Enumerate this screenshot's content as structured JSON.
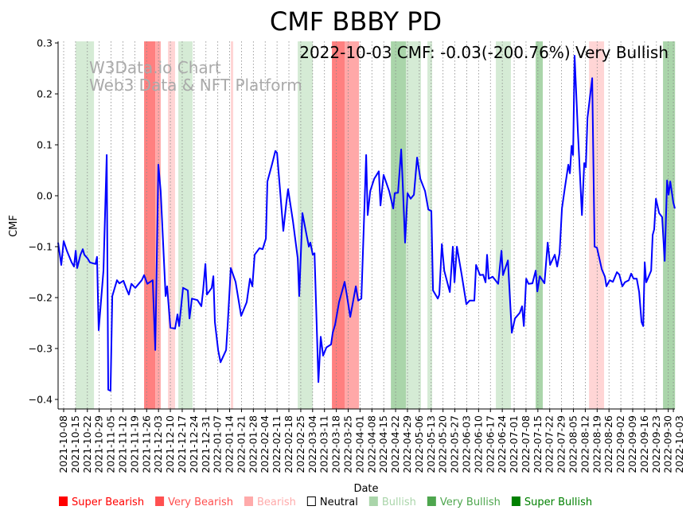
{
  "chart_data": {
    "type": "line",
    "title": "CMF BBBY PD",
    "annotation": "2022-10-03 CMF: -0.03(-200.76%) Very Bullish",
    "watermark": [
      "W3Data.io Chart",
      "Web3 Data & NFT Platform"
    ],
    "xlabel": "Date",
    "ylabel": "CMF",
    "x_unit": "days since 2021-10-08",
    "xlim": [
      -3.3,
      361
    ],
    "ylim": [
      -0.42,
      0.3
    ],
    "yticks": [
      -0.4,
      -0.3,
      -0.2,
      -0.1,
      0.0,
      0.1,
      0.2,
      0.3
    ],
    "ytick_labels": [
      "−0.4",
      "−0.3",
      "−0.2",
      "−0.1",
      "0.0",
      "0.1",
      "0.2",
      "0.3"
    ],
    "xtick_days": [
      0,
      7,
      14,
      21,
      28,
      35,
      42,
      49,
      56,
      63,
      70,
      77,
      84,
      91,
      98,
      105,
      112,
      119,
      126,
      133,
      140,
      147,
      154,
      161,
      168,
      175,
      182,
      189,
      196,
      203,
      210,
      217,
      224,
      231,
      238,
      245,
      252,
      259,
      266,
      273,
      280,
      287,
      294,
      301,
      308,
      315,
      322,
      329,
      336,
      343,
      350,
      357,
      360
    ],
    "xtick_labels": [
      "2021-10-08",
      "2021-10-15",
      "2021-10-22",
      "2021-10-29",
      "2021-11-05",
      "2021-11-12",
      "2021-11-19",
      "2021-11-26",
      "2021-12-03",
      "2021-12-10",
      "2021-12-17",
      "2021-12-24",
      "2021-12-31",
      "2022-01-07",
      "2022-01-14",
      "2022-01-21",
      "2022-01-28",
      "2022-02-04",
      "2022-02-11",
      "2022-02-18",
      "2022-02-25",
      "2022-03-04",
      "2022-03-11",
      "2022-03-18",
      "2022-03-25",
      "2022-04-01",
      "2022-04-08",
      "2022-04-15",
      "2022-04-22",
      "2022-04-29",
      "2022-05-06",
      "2022-05-13",
      "2022-05-20",
      "2022-05-27",
      "2022-06-03",
      "2022-06-10",
      "2022-06-17",
      "2022-06-24",
      "2022-07-01",
      "2022-07-08",
      "2022-07-15",
      "2022-07-22",
      "2022-07-29",
      "2022-08-05",
      "2022-08-12",
      "2022-08-19",
      "2022-08-26",
      "2022-09-02",
      "2022-09-09",
      "2022-09-16",
      "2022-09-23",
      "2022-09-30",
      "2022-10-03"
    ],
    "grid": "vertical dotted",
    "series": [
      {
        "name": "CMF",
        "color": "#0000ff",
        "points": [
          [
            -3.3,
            -0.092
          ],
          [
            -1.4,
            -0.136
          ],
          [
            0,
            -0.089
          ],
          [
            1.9,
            -0.108
          ],
          [
            4.7,
            -0.131
          ],
          [
            6.1,
            -0.139
          ],
          [
            7.1,
            -0.108
          ],
          [
            8.0,
            -0.142
          ],
          [
            9.9,
            -0.116
          ],
          [
            11.3,
            -0.105
          ],
          [
            12.2,
            -0.116
          ],
          [
            14.1,
            -0.123
          ],
          [
            15.5,
            -0.131
          ],
          [
            18.8,
            -0.134
          ],
          [
            19.7,
            -0.12
          ],
          [
            20.7,
            -0.264
          ],
          [
            23.5,
            -0.147
          ],
          [
            25.4,
            0.08
          ],
          [
            26.3,
            -0.381
          ],
          [
            27.7,
            -0.383
          ],
          [
            28.7,
            -0.197
          ],
          [
            31.5,
            -0.166
          ],
          [
            32.9,
            -0.172
          ],
          [
            35.3,
            -0.167
          ],
          [
            37.1,
            -0.183
          ],
          [
            38.5,
            -0.194
          ],
          [
            40.0,
            -0.173
          ],
          [
            42.3,
            -0.181
          ],
          [
            46.1,
            -0.166
          ],
          [
            47.5,
            -0.156
          ],
          [
            49.4,
            -0.173
          ],
          [
            52.6,
            -0.166
          ],
          [
            54.1,
            -0.303
          ],
          [
            55.9,
            0.061
          ],
          [
            57.3,
            0.009
          ],
          [
            60.2,
            -0.197
          ],
          [
            61.1,
            -0.178
          ],
          [
            63.0,
            -0.259
          ],
          [
            65.8,
            -0.261
          ],
          [
            67.2,
            -0.233
          ],
          [
            68.2,
            -0.256
          ],
          [
            70.5,
            -0.181
          ],
          [
            73.3,
            -0.186
          ],
          [
            74.3,
            -0.241
          ],
          [
            75.7,
            -0.202
          ],
          [
            79.0,
            -0.205
          ],
          [
            81.3,
            -0.217
          ],
          [
            82.3,
            -0.188
          ],
          [
            83.7,
            -0.134
          ],
          [
            84.6,
            -0.194
          ],
          [
            87.4,
            -0.181
          ],
          [
            88.4,
            -0.158
          ],
          [
            89.3,
            -0.248
          ],
          [
            91.2,
            -0.303
          ],
          [
            92.6,
            -0.327
          ],
          [
            95.9,
            -0.303
          ],
          [
            96.8,
            -0.256
          ],
          [
            98.7,
            -0.142
          ],
          [
            101.5,
            -0.169
          ],
          [
            104.8,
            -0.236
          ],
          [
            108.1,
            -0.209
          ],
          [
            110.0,
            -0.163
          ],
          [
            111.4,
            -0.178
          ],
          [
            112.8,
            -0.116
          ],
          [
            115.6,
            -0.103
          ],
          [
            117.5,
            -0.105
          ],
          [
            119.4,
            -0.084
          ],
          [
            120.3,
            0.028
          ],
          [
            123.1,
            0.063
          ],
          [
            125.0,
            0.088
          ],
          [
            126.0,
            0.084
          ],
          [
            127.8,
            0.009
          ],
          [
            129.7,
            -0.069
          ],
          [
            131.6,
            -0.011
          ],
          [
            132.5,
            0.013
          ],
          [
            135.4,
            -0.05
          ],
          [
            138.2,
            -0.123
          ],
          [
            139.1,
            -0.197
          ],
          [
            141.0,
            -0.034
          ],
          [
            143.4,
            -0.077
          ],
          [
            144.8,
            -0.1
          ],
          [
            145.7,
            -0.092
          ],
          [
            147.1,
            -0.116
          ],
          [
            148.1,
            -0.113
          ],
          [
            150.4,
            -0.366
          ],
          [
            151.8,
            -0.277
          ],
          [
            153.2,
            -0.314
          ],
          [
            155.1,
            -0.298
          ],
          [
            157.9,
            -0.292
          ],
          [
            158.9,
            -0.269
          ],
          [
            160.3,
            -0.253
          ],
          [
            162.6,
            -0.209
          ],
          [
            164.5,
            -0.186
          ],
          [
            165.9,
            -0.169
          ],
          [
            167.3,
            -0.197
          ],
          [
            169.2,
            -0.238
          ],
          [
            172.5,
            -0.178
          ],
          [
            173.9,
            -0.206
          ],
          [
            175.8,
            -0.202
          ],
          [
            178.6,
            0.08
          ],
          [
            179.5,
            -0.038
          ],
          [
            181.0,
            0.009
          ],
          [
            183.3,
            0.033
          ],
          [
            186.1,
            0.048
          ],
          [
            187.1,
            -0.019
          ],
          [
            188.9,
            0.041
          ],
          [
            192.2,
            0.009
          ],
          [
            194.6,
            -0.025
          ],
          [
            195.5,
            0.005
          ],
          [
            197.4,
            0.006
          ],
          [
            199.3,
            0.091
          ],
          [
            200.2,
            0.025
          ],
          [
            201.6,
            -0.092
          ],
          [
            203.0,
            0.005
          ],
          [
            204.9,
            -0.006
          ],
          [
            206.8,
            0.002
          ],
          [
            208.7,
            0.075
          ],
          [
            210.6,
            0.033
          ],
          [
            213.4,
            0.009
          ],
          [
            215.3,
            -0.027
          ],
          [
            217.1,
            -0.03
          ],
          [
            218.1,
            -0.186
          ],
          [
            220.9,
            -0.202
          ],
          [
            221.8,
            -0.194
          ],
          [
            223.3,
            -0.095
          ],
          [
            224.7,
            -0.147
          ],
          [
            228.0,
            -0.189
          ],
          [
            229.8,
            -0.1
          ],
          [
            230.8,
            -0.17
          ],
          [
            232.2,
            -0.1
          ],
          [
            235.0,
            -0.155
          ],
          [
            237.8,
            -0.213
          ],
          [
            239.7,
            -0.206
          ],
          [
            242.5,
            -0.206
          ],
          [
            243.5,
            -0.136
          ],
          [
            245.8,
            -0.156
          ],
          [
            247.7,
            -0.155
          ],
          [
            249.1,
            -0.17
          ],
          [
            250.0,
            -0.116
          ],
          [
            251.0,
            -0.163
          ],
          [
            253.3,
            -0.159
          ],
          [
            256.6,
            -0.173
          ],
          [
            258.5,
            -0.108
          ],
          [
            259.4,
            -0.156
          ],
          [
            262.3,
            -0.127
          ],
          [
            264.6,
            -0.269
          ],
          [
            266.5,
            -0.241
          ],
          [
            269.3,
            -0.23
          ],
          [
            270.7,
            -0.217
          ],
          [
            271.7,
            -0.256
          ],
          [
            273.1,
            -0.163
          ],
          [
            274.5,
            -0.173
          ],
          [
            276.8,
            -0.172
          ],
          [
            278.7,
            -0.147
          ],
          [
            279.7,
            -0.188
          ],
          [
            281.1,
            -0.158
          ],
          [
            283.9,
            -0.172
          ],
          [
            285.8,
            -0.092
          ],
          [
            287.2,
            -0.136
          ],
          [
            290.0,
            -0.116
          ],
          [
            291.4,
            -0.139
          ],
          [
            292.8,
            -0.113
          ],
          [
            294.2,
            -0.025
          ],
          [
            296.1,
            0.019
          ],
          [
            298.0,
            0.061
          ],
          [
            298.9,
            0.044
          ],
          [
            299.9,
            0.098
          ],
          [
            300.8,
            0.08
          ],
          [
            301.7,
            0.275
          ],
          [
            303.6,
            0.127
          ],
          [
            306.0,
            -0.038
          ],
          [
            307.4,
            0.064
          ],
          [
            308.3,
            0.056
          ],
          [
            309.3,
            0.153
          ],
          [
            312.1,
            0.231
          ],
          [
            313.5,
            -0.1
          ],
          [
            314.9,
            -0.102
          ],
          [
            317.7,
            -0.144
          ],
          [
            319.6,
            -0.159
          ],
          [
            320.5,
            -0.178
          ],
          [
            322.4,
            -0.166
          ],
          [
            324.3,
            -0.169
          ],
          [
            326.7,
            -0.15
          ],
          [
            328.1,
            -0.155
          ],
          [
            329.9,
            -0.178
          ],
          [
            331.4,
            -0.17
          ],
          [
            333.7,
            -0.166
          ],
          [
            335.1,
            -0.153
          ],
          [
            336.5,
            -0.163
          ],
          [
            338.4,
            -0.163
          ],
          [
            339.8,
            -0.189
          ],
          [
            341.2,
            -0.248
          ],
          [
            342.2,
            -0.256
          ],
          [
            343.1,
            -0.131
          ],
          [
            344.0,
            -0.17
          ],
          [
            346.9,
            -0.147
          ],
          [
            347.8,
            -0.077
          ],
          [
            348.7,
            -0.066
          ],
          [
            349.7,
            -0.006
          ],
          [
            351.6,
            -0.034
          ],
          [
            353.4,
            -0.042
          ],
          [
            354.9,
            -0.128
          ],
          [
            356.3,
            0.03
          ],
          [
            357.2,
            0.002
          ],
          [
            358.2,
            0.028
          ],
          [
            360.0,
            -0.014
          ],
          [
            360.9,
            -0.025
          ]
        ]
      }
    ],
    "bands": [
      {
        "from": 7.1,
        "to": 17.9,
        "kind": "Bullish"
      },
      {
        "from": 47.5,
        "to": 54.1,
        "kind": "Super Bearish"
      },
      {
        "from": 54.1,
        "to": 57.3,
        "kind": "Very Bearish"
      },
      {
        "from": 61.6,
        "to": 65.8,
        "kind": "Bearish"
      },
      {
        "from": 67.7,
        "to": 76.1,
        "kind": "Bullish"
      },
      {
        "from": 98.7,
        "to": 100.1,
        "kind": "Bearish"
      },
      {
        "from": 138.2,
        "to": 147.1,
        "kind": "Bullish"
      },
      {
        "from": 158.4,
        "to": 165.9,
        "kind": "Super Bearish"
      },
      {
        "from": 165.9,
        "to": 174.4,
        "kind": "Very Bearish"
      },
      {
        "from": 193.2,
        "to": 202.1,
        "kind": "Very Bullish"
      },
      {
        "from": 202.1,
        "to": 211.0,
        "kind": "Bullish"
      },
      {
        "from": 214.8,
        "to": 217.6,
        "kind": "Bullish"
      },
      {
        "from": 255.2,
        "to": 264.1,
        "kind": "Bullish"
      },
      {
        "from": 278.7,
        "to": 282.9,
        "kind": "Very Bullish"
      },
      {
        "from": 310.2,
        "to": 319.1,
        "kind": "Bearish"
      },
      {
        "from": 353.9,
        "to": 361.0,
        "kind": "Very Bullish"
      }
    ],
    "band_colors": {
      "Super Bearish": "#ff8080",
      "Very Bearish": "#ffa8a8",
      "Bearish": "#ffd5d5",
      "Bullish": "#d5ebd5",
      "Very Bullish": "#aad5aa",
      "Super Bullish": "#80c080"
    },
    "legend_position": "bottom",
    "legend": [
      {
        "label": "Super Bearish",
        "color": "#ff0000",
        "outline": false
      },
      {
        "label": "Very Bearish",
        "color": "#ff5050",
        "outline": false
      },
      {
        "label": "Bearish",
        "color": "#ffaaaa",
        "outline": false
      },
      {
        "label": "Neutral",
        "color": "#000000",
        "outline": true
      },
      {
        "label": "Bullish",
        "color": "#aad5aa",
        "outline": false
      },
      {
        "label": "Very Bullish",
        "color": "#4ea64e",
        "outline": false
      },
      {
        "label": "Super Bullish",
        "color": "#008000",
        "outline": false
      }
    ]
  }
}
